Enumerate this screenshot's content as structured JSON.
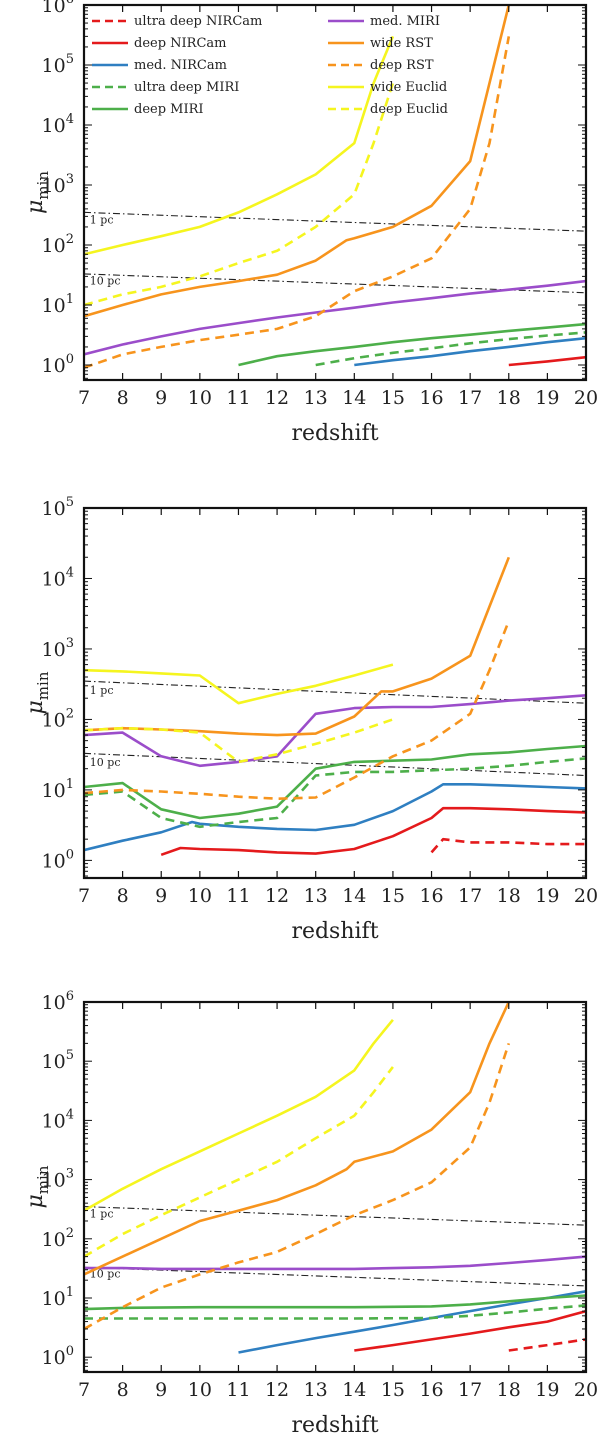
{
  "chart_data": [
    {
      "type": "line",
      "xlabel": "redshift",
      "ylabel": "μ",
      "ylabel_sub": "min",
      "xlim": [
        7,
        20
      ],
      "ylim_log10": [
        -0.25,
        6
      ],
      "y_scale": "log",
      "x_ticks": [
        7,
        8,
        9,
        10,
        11,
        12,
        13,
        14,
        15,
        16,
        17,
        18,
        19,
        20
      ],
      "y_tick_exponents": [
        0,
        1,
        2,
        3,
        4,
        5,
        6
      ],
      "legend": true,
      "legend_position": "top-left",
      "annotations": [
        {
          "text": "1 pc",
          "x": 7.15,
          "y": 230
        },
        {
          "text": "10 pc",
          "x": 7.15,
          "y": 22
        }
      ],
      "reference_lines": [
        {
          "name": "1 pc",
          "x": [
            7,
            20
          ],
          "y": [
            350,
            170
          ]
        },
        {
          "name": "10 pc",
          "x": [
            7,
            20
          ],
          "y": [
            33,
            16
          ]
        }
      ],
      "series": [
        {
          "name": "ultra deep NIRCam",
          "color": "#e41a1c",
          "style": "dashed",
          "x": [],
          "y": []
        },
        {
          "name": "deep NIRCam",
          "color": "#e41a1c",
          "style": "solid",
          "x": [
            18,
            19,
            20
          ],
          "y": [
            1.0,
            1.15,
            1.35
          ]
        },
        {
          "name": "med. NIRCam",
          "color": "#2f7fc1",
          "style": "solid",
          "x": [
            14,
            15,
            16,
            17,
            18,
            19,
            20
          ],
          "y": [
            1.0,
            1.2,
            1.4,
            1.7,
            2.0,
            2.4,
            2.8
          ]
        },
        {
          "name": "ultra deep MIRI",
          "color": "#4daf4a",
          "style": "dashed",
          "x": [
            13,
            14,
            15,
            16,
            17,
            18,
            19,
            20
          ],
          "y": [
            1.0,
            1.3,
            1.6,
            1.9,
            2.3,
            2.7,
            3.1,
            3.5
          ]
        },
        {
          "name": "deep MIRI",
          "color": "#4daf4a",
          "style": "solid",
          "x": [
            11,
            12,
            13,
            14,
            15,
            16,
            17,
            18,
            19,
            20
          ],
          "y": [
            1.0,
            1.4,
            1.7,
            2.0,
            2.4,
            2.8,
            3.2,
            3.7,
            4.2,
            4.8
          ]
        },
        {
          "name": "med. MIRI",
          "color": "#9b4dca",
          "style": "solid",
          "x": [
            7,
            8,
            9,
            10,
            11,
            12,
            13,
            14,
            15,
            16,
            17,
            18,
            19,
            20
          ],
          "y": [
            1.5,
            2.2,
            3.0,
            4.0,
            5.0,
            6.2,
            7.5,
            9.0,
            11,
            13,
            15.5,
            18,
            21,
            25
          ]
        },
        {
          "name": "wide RST",
          "color": "#f7941d",
          "style": "solid",
          "x": [
            7,
            8,
            9,
            10,
            11,
            12,
            13,
            13.8,
            14,
            15,
            16,
            17,
            17.5,
            18
          ],
          "y": [
            6.5,
            10,
            15,
            20,
            25,
            32,
            55,
            120,
            130,
            200,
            450,
            2500,
            50000,
            1000000
          ]
        },
        {
          "name": "deep RST",
          "color": "#f7941d",
          "style": "dashed",
          "x": [
            7,
            8,
            9,
            10,
            11,
            12,
            13,
            14,
            15,
            16,
            17,
            17.5,
            18
          ],
          "y": [
            0.9,
            1.5,
            2.0,
            2.6,
            3.2,
            4.0,
            6.5,
            17,
            30,
            60,
            400,
            5000,
            300000
          ]
        },
        {
          "name": "wide Euclid",
          "color": "#f5f51f",
          "style": "solid",
          "x": [
            7,
            8,
            9,
            10,
            11,
            12,
            13,
            14,
            14.5,
            15
          ],
          "y": [
            70,
            100,
            140,
            200,
            350,
            700,
            1500,
            5000,
            50000,
            300000
          ]
        },
        {
          "name": "deep Euclid",
          "color": "#f5f51f",
          "style": "dashed",
          "x": [
            7,
            8,
            9,
            10,
            11,
            12,
            13,
            14,
            14.5,
            15
          ],
          "y": [
            10,
            15,
            20,
            30,
            50,
            80,
            200,
            700,
            5000,
            50000
          ]
        }
      ]
    },
    {
      "type": "line",
      "xlabel": "redshift",
      "ylabel": "μ",
      "ylabel_sub": "min",
      "xlim": [
        7,
        20
      ],
      "ylim_log10": [
        -0.25,
        5
      ],
      "y_scale": "log",
      "x_ticks": [
        7,
        8,
        9,
        10,
        11,
        12,
        13,
        14,
        15,
        16,
        17,
        18,
        19,
        20
      ],
      "y_tick_exponents": [
        0,
        1,
        2,
        3,
        4,
        5
      ],
      "legend": false,
      "annotations": [
        {
          "text": "1 pc",
          "x": 7.15,
          "y": 230
        },
        {
          "text": "10 pc",
          "x": 7.15,
          "y": 22
        }
      ],
      "reference_lines": [
        {
          "name": "1 pc",
          "x": [
            7,
            20
          ],
          "y": [
            350,
            170
          ]
        },
        {
          "name": "10 pc",
          "x": [
            7,
            20
          ],
          "y": [
            33,
            16
          ]
        }
      ],
      "series": [
        {
          "name": "ultra deep NIRCam",
          "color": "#e41a1c",
          "style": "dashed",
          "x": [
            16,
            16.3,
            17,
            18,
            19,
            20
          ],
          "y": [
            1.3,
            2.0,
            1.8,
            1.8,
            1.7,
            1.7
          ]
        },
        {
          "name": "deep NIRCam",
          "color": "#e41a1c",
          "style": "solid",
          "x": [
            9,
            9.5,
            10,
            11,
            12,
            13,
            14,
            15,
            16,
            16.3,
            17,
            18,
            19,
            20
          ],
          "y": [
            1.2,
            1.5,
            1.45,
            1.4,
            1.3,
            1.25,
            1.45,
            2.2,
            4.0,
            5.5,
            5.5,
            5.3,
            5.0,
            4.8
          ]
        },
        {
          "name": "med. NIRCam",
          "color": "#2f7fc1",
          "style": "solid",
          "x": [
            7,
            8,
            9,
            9.8,
            10,
            11,
            12,
            13,
            14,
            15,
            16,
            16.3,
            17,
            18,
            19,
            20
          ],
          "y": [
            1.4,
            1.9,
            2.5,
            3.5,
            3.3,
            3.0,
            2.8,
            2.7,
            3.2,
            5.0,
            9.5,
            12,
            12,
            11.5,
            11,
            10.5
          ]
        },
        {
          "name": "ultra deep MIRI",
          "color": "#4daf4a",
          "style": "dashed",
          "x": [
            7,
            8,
            9,
            10,
            11,
            12,
            13,
            14,
            15,
            16,
            17,
            18,
            19,
            20
          ],
          "y": [
            8.5,
            9.5,
            4.0,
            3.0,
            3.5,
            4.0,
            16,
            18,
            18,
            19,
            20,
            22,
            25,
            28
          ]
        },
        {
          "name": "deep MIRI",
          "color": "#4daf4a",
          "style": "solid",
          "x": [
            7,
            8,
            9,
            10,
            11,
            12,
            13,
            14,
            15,
            16,
            17,
            18,
            19,
            20
          ],
          "y": [
            11,
            12.5,
            5.3,
            4.0,
            4.6,
            5.8,
            20,
            25,
            26,
            27,
            32,
            34,
            38,
            42
          ]
        },
        {
          "name": "med. MIRI",
          "color": "#9b4dca",
          "style": "solid",
          "x": [
            7,
            8,
            9,
            10,
            11,
            12,
            13,
            14,
            15,
            16,
            17,
            18,
            19,
            20
          ],
          "y": [
            60,
            65,
            30,
            22,
            25,
            30,
            120,
            145,
            150,
            150,
            165,
            185,
            200,
            220
          ]
        },
        {
          "name": "wide RST",
          "color": "#f7941d",
          "style": "solid",
          "x": [
            7,
            8,
            9,
            10,
            11,
            12,
            13,
            14,
            14.7,
            15,
            16,
            17,
            17.5,
            18
          ],
          "y": [
            70,
            75,
            72,
            68,
            63,
            60,
            63,
            110,
            250,
            250,
            380,
            800,
            4000,
            20000
          ]
        },
        {
          "name": "deep RST",
          "color": "#f7941d",
          "style": "dashed",
          "x": [
            7,
            8,
            9,
            10,
            11,
            12,
            13,
            14,
            15,
            16,
            17,
            17.5,
            18
          ],
          "y": [
            9,
            10,
            9.5,
            8.8,
            8.0,
            7.5,
            7.8,
            15,
            30,
            50,
            120,
            500,
            2500
          ]
        },
        {
          "name": "wide Euclid",
          "color": "#f5f51f",
          "style": "solid",
          "x": [
            7,
            8,
            9,
            10,
            11,
            12,
            13,
            14,
            15
          ],
          "y": [
            500,
            480,
            450,
            420,
            170,
            230,
            300,
            420,
            600
          ]
        },
        {
          "name": "deep Euclid",
          "color": "#f5f51f",
          "style": "dashed",
          "x": [
            7,
            8,
            9,
            10,
            11,
            12,
            13,
            14,
            15
          ],
          "y": [
            70,
            75,
            72,
            65,
            25,
            32,
            45,
            65,
            100
          ]
        }
      ]
    },
    {
      "type": "line",
      "xlabel": "redshift",
      "ylabel": "μ",
      "ylabel_sub": "min",
      "xlim": [
        7,
        20
      ],
      "ylim_log10": [
        -0.25,
        6
      ],
      "y_scale": "log",
      "x_ticks": [
        7,
        8,
        9,
        10,
        11,
        12,
        13,
        14,
        15,
        16,
        17,
        18,
        19,
        20
      ],
      "y_tick_exponents": [
        0,
        1,
        2,
        3,
        4,
        5,
        6
      ],
      "legend": false,
      "annotations": [
        {
          "text": "1 pc",
          "x": 7.15,
          "y": 230
        },
        {
          "text": "10 pc",
          "x": 7.15,
          "y": 22
        }
      ],
      "reference_lines": [
        {
          "name": "1 pc",
          "x": [
            7,
            20
          ],
          "y": [
            350,
            170
          ]
        },
        {
          "name": "10 pc",
          "x": [
            7,
            20
          ],
          "y": [
            33,
            16
          ]
        }
      ],
      "series": [
        {
          "name": "ultra deep NIRCam",
          "color": "#e41a1c",
          "style": "dashed",
          "x": [
            18,
            19,
            20
          ],
          "y": [
            1.3,
            1.6,
            2.0
          ]
        },
        {
          "name": "deep NIRCam",
          "color": "#e41a1c",
          "style": "solid",
          "x": [
            14,
            15,
            16,
            17,
            18,
            19,
            20
          ],
          "y": [
            1.3,
            1.6,
            2.0,
            2.5,
            3.2,
            4.0,
            6.0
          ]
        },
        {
          "name": "med. NIRCam",
          "color": "#2f7fc1",
          "style": "solid",
          "x": [
            11,
            12,
            13,
            14,
            15,
            16,
            17,
            18,
            19,
            20
          ],
          "y": [
            1.2,
            1.6,
            2.1,
            2.7,
            3.5,
            4.6,
            6.0,
            7.8,
            10,
            13
          ]
        },
        {
          "name": "ultra deep MIRI",
          "color": "#4daf4a",
          "style": "dashed",
          "x": [
            7,
            8,
            10,
            12,
            14,
            16,
            17,
            18,
            19,
            20
          ],
          "y": [
            4.5,
            4.5,
            4.5,
            4.5,
            4.5,
            4.6,
            5.0,
            5.7,
            6.6,
            7.5
          ]
        },
        {
          "name": "deep MIRI",
          "color": "#4daf4a",
          "style": "solid",
          "x": [
            7,
            8,
            10,
            12,
            14,
            16,
            17,
            18,
            19,
            20
          ],
          "y": [
            6.5,
            6.8,
            7.0,
            7.0,
            7.0,
            7.2,
            7.8,
            8.8,
            10,
            11
          ]
        },
        {
          "name": "med. MIRI",
          "color": "#9b4dca",
          "style": "solid",
          "x": [
            7,
            8,
            9,
            10,
            11,
            12,
            13,
            14,
            15,
            16,
            17,
            18,
            19,
            20
          ],
          "y": [
            32,
            32,
            31,
            31,
            31,
            31,
            31,
            31,
            32,
            33,
            35,
            39,
            44,
            50
          ]
        },
        {
          "name": "wide RST",
          "color": "#f7941d",
          "style": "solid",
          "x": [
            7,
            8,
            9,
            10,
            11,
            12,
            13,
            13.8,
            14,
            15,
            16,
            17,
            17.5,
            18
          ],
          "y": [
            25,
            50,
            100,
            200,
            300,
            450,
            800,
            1500,
            2000,
            3000,
            7000,
            30000,
            200000,
            1000000
          ]
        },
        {
          "name": "deep RST",
          "color": "#f7941d",
          "style": "dashed",
          "x": [
            7,
            8,
            9,
            10,
            11,
            12,
            13,
            14,
            15,
            16,
            17,
            17.5,
            18
          ],
          "y": [
            3,
            7,
            15,
            25,
            40,
            60,
            120,
            250,
            450,
            900,
            3500,
            20000,
            200000
          ]
        },
        {
          "name": "wide Euclid",
          "color": "#f5f51f",
          "style": "solid",
          "x": [
            7,
            8,
            9,
            10,
            11,
            12,
            13,
            14,
            14.5,
            15
          ],
          "y": [
            300,
            700,
            1500,
            3000,
            6000,
            12000,
            25000,
            70000,
            200000,
            500000
          ]
        },
        {
          "name": "deep Euclid",
          "color": "#f5f51f",
          "style": "dashed",
          "x": [
            7,
            8,
            9,
            10,
            11,
            12,
            13,
            14,
            14.5,
            15
          ],
          "y": [
            50,
            120,
            250,
            500,
            1000,
            2000,
            5000,
            12000,
            30000,
            80000
          ]
        }
      ]
    }
  ]
}
